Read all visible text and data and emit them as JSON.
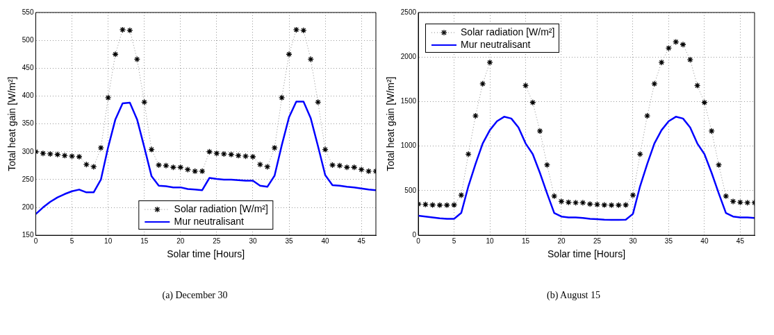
{
  "chart_data": [
    {
      "type": "line",
      "xlabel": "Solar time [Hours]",
      "ylabel": "Total heat gain [W/m²]",
      "annotations": [
        "(a) December 30"
      ],
      "x": [
        0,
        1,
        2,
        3,
        4,
        5,
        6,
        7,
        8,
        9,
        10,
        11,
        12,
        13,
        14,
        15,
        16,
        17,
        18,
        19,
        20,
        21,
        22,
        23,
        24,
        25,
        26,
        27,
        28,
        29,
        30,
        31,
        32,
        33,
        34,
        35,
        36,
        37,
        38,
        39,
        40,
        41,
        42,
        43,
        44,
        45,
        46,
        47
      ],
      "xlim": [
        0,
        47
      ],
      "xticks": [
        0,
        5,
        10,
        15,
        20,
        25,
        30,
        35,
        40,
        45
      ],
      "ylim": [
        150,
        550
      ],
      "yticks": [
        150,
        200,
        250,
        300,
        350,
        400,
        450,
        500,
        550
      ],
      "grid": true,
      "legend": "bottom",
      "series": [
        {
          "name": "Solar radiation [W/m²]",
          "color": "#000000",
          "marker": "cross",
          "line_style": "dotted",
          "values": [
            300,
            297,
            296,
            295,
            293,
            292,
            291,
            277,
            273,
            307,
            397,
            475,
            519,
            518,
            466,
            389,
            304,
            276,
            275,
            272,
            272,
            268,
            265,
            265,
            300,
            297,
            296,
            295,
            293,
            292,
            291,
            277,
            273,
            307,
            397,
            475,
            519,
            518,
            466,
            389,
            304,
            276,
            275,
            272,
            272,
            268,
            265,
            265
          ]
        },
        {
          "name": "Mur neutralisant",
          "color": "#0000ff",
          "marker": "none",
          "line_style": "solid",
          "values": [
            188,
            200,
            210,
            218,
            224,
            229,
            232,
            227,
            227,
            250,
            308,
            358,
            387,
            388,
            358,
            308,
            256,
            239,
            238,
            236,
            236,
            233,
            232,
            231,
            253,
            251,
            250,
            250,
            249,
            248,
            248,
            239,
            237,
            257,
            312,
            362,
            390,
            390,
            360,
            310,
            258,
            240,
            239,
            237,
            236,
            234,
            232,
            231
          ]
        }
      ]
    },
    {
      "type": "line",
      "xlabel": "Solar time [Hours]",
      "ylabel": "Total heat gain [W/m²]",
      "annotations": [
        "(b) August 15"
      ],
      "x": [
        0,
        1,
        2,
        3,
        4,
        5,
        6,
        7,
        8,
        9,
        10,
        11,
        12,
        13,
        14,
        15,
        16,
        17,
        18,
        19,
        20,
        21,
        22,
        23,
        24,
        25,
        26,
        27,
        28,
        29,
        30,
        31,
        32,
        33,
        34,
        35,
        36,
        37,
        38,
        39,
        40,
        41,
        42,
        43,
        44,
        45,
        46,
        47
      ],
      "xlim": [
        0,
        47
      ],
      "xticks": [
        0,
        5,
        10,
        15,
        20,
        25,
        30,
        35,
        40,
        45
      ],
      "ylim": [
        0,
        2500
      ],
      "yticks": [
        0,
        500,
        1000,
        1500,
        2000,
        2500
      ],
      "grid": true,
      "legend": "top left",
      "series": [
        {
          "name": "Solar radiation [W/m²]",
          "color": "#000000",
          "marker": "cross",
          "line_style": "dotted",
          "values": [
            350,
            345,
            340,
            338,
            338,
            340,
            450,
            910,
            1340,
            1700,
            1940,
            null,
            null,
            null,
            null,
            1680,
            1490,
            1170,
            790,
            440,
            380,
            370,
            365,
            365,
            350,
            345,
            340,
            338,
            338,
            340,
            450,
            910,
            1340,
            1700,
            1940,
            2100,
            2170,
            2140,
            1970,
            1680,
            1490,
            1170,
            790,
            440,
            380,
            370,
            365,
            365
          ]
        },
        {
          "name": "Mur neutralisant",
          "color": "#0000ff",
          "marker": "none",
          "line_style": "solid",
          "values": [
            220,
            210,
            200,
            190,
            185,
            185,
            250,
            550,
            800,
            1030,
            1180,
            1280,
            1330,
            1310,
            1210,
            1030,
            910,
            700,
            470,
            250,
            210,
            200,
            200,
            195,
            185,
            180,
            175,
            172,
            172,
            175,
            240,
            550,
            800,
            1030,
            1180,
            1280,
            1330,
            1310,
            1210,
            1030,
            910,
            700,
            470,
            250,
            210,
            200,
            200,
            195
          ]
        }
      ]
    }
  ]
}
